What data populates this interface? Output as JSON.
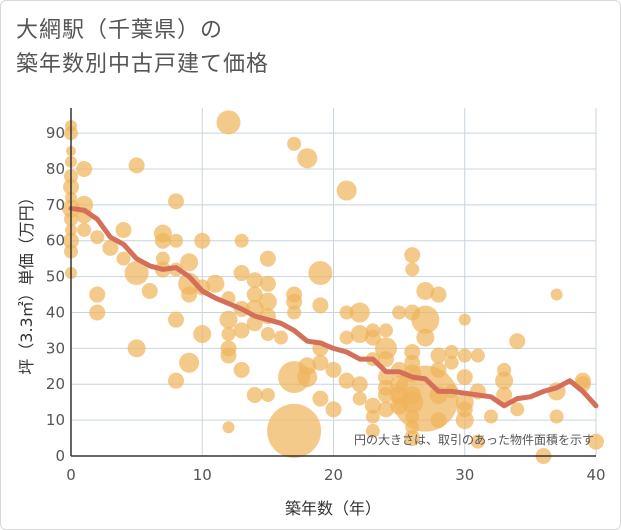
{
  "title_lines": [
    "大網駅（千葉県）の",
    "築年数別中古戸建て価格"
  ],
  "chart_data": {
    "type": "scatter",
    "title": "大網駅（千葉県）の築年数別中古戸建て価格",
    "xlabel": "築年数（年）",
    "ylabel": "坪（3.3㎡）単価（万円）",
    "xlim": [
      0,
      40
    ],
    "ylim": [
      0,
      97
    ],
    "x_ticks": [
      0,
      10,
      20,
      30,
      40
    ],
    "y_ticks": [
      0,
      10,
      20,
      30,
      40,
      50,
      60,
      70,
      80,
      90
    ],
    "grid": true,
    "note": "円の大きさは、取引のあった物件面積を示す",
    "colors": {
      "bubble": "#f0b45a",
      "line": "#d4705a",
      "grid": "#c8d4e0",
      "axis": "#333333"
    },
    "series": [
      {
        "type": "bubble",
        "points": [
          {
            "x": 0,
            "y": 92,
            "s": 6
          },
          {
            "x": 0,
            "y": 90,
            "s": 7
          },
          {
            "x": 0,
            "y": 85,
            "s": 5
          },
          {
            "x": 0,
            "y": 82,
            "s": 6
          },
          {
            "x": 0,
            "y": 78,
            "s": 7
          },
          {
            "x": 0,
            "y": 75,
            "s": 8
          },
          {
            "x": 0,
            "y": 72,
            "s": 6
          },
          {
            "x": 0,
            "y": 69,
            "s": 9
          },
          {
            "x": 0,
            "y": 66,
            "s": 7
          },
          {
            "x": 0,
            "y": 63,
            "s": 6
          },
          {
            "x": 0,
            "y": 60,
            "s": 8
          },
          {
            "x": 0,
            "y": 57,
            "s": 7
          },
          {
            "x": 0,
            "y": 51,
            "s": 6
          },
          {
            "x": 1,
            "y": 80,
            "s": 8
          },
          {
            "x": 1,
            "y": 70,
            "s": 9
          },
          {
            "x": 1,
            "y": 67,
            "s": 8
          },
          {
            "x": 1,
            "y": 63,
            "s": 7
          },
          {
            "x": 2,
            "y": 61,
            "s": 7
          },
          {
            "x": 2,
            "y": 45,
            "s": 8
          },
          {
            "x": 2,
            "y": 40,
            "s": 8
          },
          {
            "x": 3,
            "y": 58,
            "s": 8
          },
          {
            "x": 4,
            "y": 63,
            "s": 8
          },
          {
            "x": 4,
            "y": 55,
            "s": 7
          },
          {
            "x": 5,
            "y": 81,
            "s": 8
          },
          {
            "x": 5,
            "y": 51,
            "s": 12
          },
          {
            "x": 5,
            "y": 30,
            "s": 9
          },
          {
            "x": 6,
            "y": 46,
            "s": 8
          },
          {
            "x": 7,
            "y": 62,
            "s": 9
          },
          {
            "x": 7,
            "y": 60,
            "s": 8
          },
          {
            "x": 7,
            "y": 55,
            "s": 7
          },
          {
            "x": 7,
            "y": 52,
            "s": 8
          },
          {
            "x": 8,
            "y": 71,
            "s": 8
          },
          {
            "x": 8,
            "y": 60,
            "s": 7
          },
          {
            "x": 8,
            "y": 52,
            "s": 7
          },
          {
            "x": 8,
            "y": 38,
            "s": 8
          },
          {
            "x": 8,
            "y": 21,
            "s": 8
          },
          {
            "x": 9,
            "y": 54,
            "s": 9
          },
          {
            "x": 9,
            "y": 48,
            "s": 11
          },
          {
            "x": 9,
            "y": 45,
            "s": 8
          },
          {
            "x": 9,
            "y": 26,
            "s": 10
          },
          {
            "x": 10,
            "y": 60,
            "s": 8
          },
          {
            "x": 10,
            "y": 47,
            "s": 8
          },
          {
            "x": 10,
            "y": 34,
            "s": 9
          },
          {
            "x": 11,
            "y": 48,
            "s": 9
          },
          {
            "x": 12,
            "y": 93,
            "s": 12
          },
          {
            "x": 12,
            "y": 44,
            "s": 7
          },
          {
            "x": 12,
            "y": 38,
            "s": 9
          },
          {
            "x": 12,
            "y": 34,
            "s": 7
          },
          {
            "x": 12,
            "y": 30,
            "s": 8
          },
          {
            "x": 12,
            "y": 28,
            "s": 8
          },
          {
            "x": 12,
            "y": 8,
            "s": 6
          },
          {
            "x": 13,
            "y": 60,
            "s": 7
          },
          {
            "x": 13,
            "y": 51,
            "s": 8
          },
          {
            "x": 13,
            "y": 41,
            "s": 8
          },
          {
            "x": 13,
            "y": 35,
            "s": 8
          },
          {
            "x": 13,
            "y": 24,
            "s": 8
          },
          {
            "x": 14,
            "y": 49,
            "s": 8
          },
          {
            "x": 14,
            "y": 45,
            "s": 8
          },
          {
            "x": 14,
            "y": 41,
            "s": 9
          },
          {
            "x": 14,
            "y": 37,
            "s": 8
          },
          {
            "x": 14,
            "y": 17,
            "s": 8
          },
          {
            "x": 15,
            "y": 55,
            "s": 8
          },
          {
            "x": 15,
            "y": 48,
            "s": 8
          },
          {
            "x": 15,
            "y": 43,
            "s": 9
          },
          {
            "x": 15,
            "y": 39,
            "s": 8
          },
          {
            "x": 15,
            "y": 34,
            "s": 7
          },
          {
            "x": 15,
            "y": 17,
            "s": 7
          },
          {
            "x": 16,
            "y": 33,
            "s": 7
          },
          {
            "x": 17,
            "y": 87,
            "s": 7
          },
          {
            "x": 17,
            "y": 45,
            "s": 8
          },
          {
            "x": 17,
            "y": 43,
            "s": 8
          },
          {
            "x": 17,
            "y": 40,
            "s": 7
          },
          {
            "x": 17,
            "y": 22,
            "s": 16
          },
          {
            "x": 17,
            "y": 7,
            "s": 27
          },
          {
            "x": 18,
            "y": 83,
            "s": 10
          },
          {
            "x": 18,
            "y": 25,
            "s": 9
          },
          {
            "x": 18,
            "y": 22,
            "s": 10
          },
          {
            "x": 19,
            "y": 51,
            "s": 12
          },
          {
            "x": 19,
            "y": 42,
            "s": 8
          },
          {
            "x": 19,
            "y": 30,
            "s": 8
          },
          {
            "x": 19,
            "y": 26,
            "s": 8
          },
          {
            "x": 19,
            "y": 16,
            "s": 8
          },
          {
            "x": 20,
            "y": 24,
            "s": 8
          },
          {
            "x": 20,
            "y": 13,
            "s": 8
          },
          {
            "x": 21,
            "y": 74,
            "s": 10
          },
          {
            "x": 21,
            "y": 40,
            "s": 7
          },
          {
            "x": 21,
            "y": 33,
            "s": 7
          },
          {
            "x": 21,
            "y": 21,
            "s": 8
          },
          {
            "x": 22,
            "y": 40,
            "s": 10
          },
          {
            "x": 22,
            "y": 34,
            "s": 9
          },
          {
            "x": 22,
            "y": 20,
            "s": 8
          },
          {
            "x": 22,
            "y": 16,
            "s": 7
          },
          {
            "x": 23,
            "y": 35,
            "s": 7
          },
          {
            "x": 23,
            "y": 33,
            "s": 8
          },
          {
            "x": 23,
            "y": 27,
            "s": 7
          },
          {
            "x": 23,
            "y": 14,
            "s": 8
          },
          {
            "x": 23,
            "y": 11,
            "s": 7
          },
          {
            "x": 23,
            "y": 7,
            "s": 7
          },
          {
            "x": 24,
            "y": 35,
            "s": 7
          },
          {
            "x": 24,
            "y": 30,
            "s": 11
          },
          {
            "x": 24,
            "y": 27,
            "s": 8
          },
          {
            "x": 24,
            "y": 22,
            "s": 8
          },
          {
            "x": 24,
            "y": 19,
            "s": 8
          },
          {
            "x": 24,
            "y": 17,
            "s": 8
          },
          {
            "x": 24,
            "y": 13,
            "s": 8
          },
          {
            "x": 25,
            "y": 40,
            "s": 7
          },
          {
            "x": 25,
            "y": 24,
            "s": 8
          },
          {
            "x": 25,
            "y": 20,
            "s": 9
          },
          {
            "x": 25,
            "y": 17,
            "s": 9
          },
          {
            "x": 25,
            "y": 14,
            "s": 9
          },
          {
            "x": 26,
            "y": 56,
            "s": 8
          },
          {
            "x": 26,
            "y": 52,
            "s": 7
          },
          {
            "x": 26,
            "y": 40,
            "s": 8
          },
          {
            "x": 26,
            "y": 29,
            "s": 8
          },
          {
            "x": 26,
            "y": 26,
            "s": 8
          },
          {
            "x": 26,
            "y": 23,
            "s": 9
          },
          {
            "x": 26,
            "y": 17,
            "s": 9
          },
          {
            "x": 26,
            "y": 15,
            "s": 11
          },
          {
            "x": 26,
            "y": 11,
            "s": 7
          },
          {
            "x": 26,
            "y": 8,
            "s": 7
          },
          {
            "x": 26,
            "y": 5,
            "s": 8
          },
          {
            "x": 27,
            "y": 46,
            "s": 9
          },
          {
            "x": 27,
            "y": 38,
            "s": 14
          },
          {
            "x": 27,
            "y": 33,
            "s": 9
          },
          {
            "x": 27,
            "y": 16,
            "s": 33
          },
          {
            "x": 28,
            "y": 45,
            "s": 8
          },
          {
            "x": 28,
            "y": 28,
            "s": 8
          },
          {
            "x": 28,
            "y": 24,
            "s": 8
          },
          {
            "x": 28,
            "y": 17,
            "s": 9
          },
          {
            "x": 28,
            "y": 10,
            "s": 8
          },
          {
            "x": 29,
            "y": 29,
            "s": 7
          },
          {
            "x": 29,
            "y": 26,
            "s": 7
          },
          {
            "x": 29,
            "y": 18,
            "s": 7
          },
          {
            "x": 30,
            "y": 38,
            "s": 6
          },
          {
            "x": 30,
            "y": 28,
            "s": 7
          },
          {
            "x": 30,
            "y": 22,
            "s": 8
          },
          {
            "x": 30,
            "y": 15,
            "s": 9
          },
          {
            "x": 30,
            "y": 13,
            "s": 8
          },
          {
            "x": 30,
            "y": 10,
            "s": 9
          },
          {
            "x": 31,
            "y": 28,
            "s": 7
          },
          {
            "x": 31,
            "y": 18,
            "s": 8
          },
          {
            "x": 31,
            "y": 4,
            "s": 7
          },
          {
            "x": 32,
            "y": 11,
            "s": 7
          },
          {
            "x": 33,
            "y": 24,
            "s": 7
          },
          {
            "x": 33,
            "y": 21,
            "s": 9
          },
          {
            "x": 33,
            "y": 17,
            "s": 8
          },
          {
            "x": 34,
            "y": 32,
            "s": 8
          },
          {
            "x": 34,
            "y": 13,
            "s": 7
          },
          {
            "x": 36,
            "y": 0,
            "s": 8
          },
          {
            "x": 37,
            "y": 45,
            "s": 6
          },
          {
            "x": 37,
            "y": 18,
            "s": 9
          },
          {
            "x": 37,
            "y": 11,
            "s": 7
          },
          {
            "x": 39,
            "y": 21,
            "s": 8
          },
          {
            "x": 39,
            "y": 20,
            "s": 8
          },
          {
            "x": 40,
            "y": 4,
            "s": 8
          }
        ]
      },
      {
        "type": "line",
        "x": [
          0,
          1,
          2,
          3,
          4,
          5,
          6,
          7,
          8,
          9,
          10,
          11,
          12,
          13,
          14,
          15,
          16,
          17,
          18,
          19,
          20,
          21,
          22,
          23,
          24,
          25,
          26,
          27,
          28,
          29,
          30,
          31,
          32,
          33,
          34,
          35,
          36,
          37,
          38,
          39,
          40
        ],
        "y": [
          69,
          68.5,
          66,
          61,
          59,
          55,
          53,
          52,
          52.5,
          50,
          46,
          44,
          42.5,
          41,
          39,
          38,
          37,
          35,
          32,
          31.5,
          30,
          29,
          27,
          27,
          23.5,
          23.5,
          22,
          21.5,
          18,
          18,
          17.5,
          17,
          16.5,
          14,
          16,
          16.5,
          18,
          19,
          21,
          18,
          14
        ]
      }
    ]
  }
}
